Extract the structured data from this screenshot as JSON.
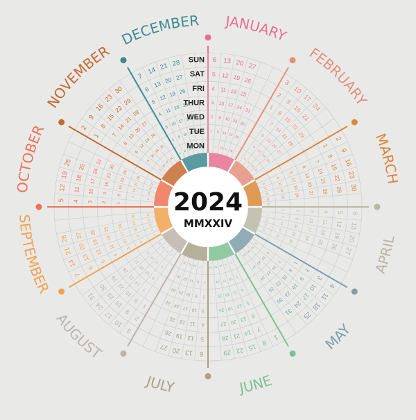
{
  "year": "2024",
  "roman_year": "MMXXIV",
  "weekday_labels": [
    "SUN",
    "SAT",
    "FRI",
    "THUR",
    "WED",
    "TUE",
    "MON"
  ],
  "months": [
    {
      "name": "JANUARY",
      "color": "#e86f8e",
      "first_weekday": 1,
      "days": 31
    },
    {
      "name": "FEBRUARY",
      "color": "#e4907a",
      "first_weekday": 4,
      "days": 29
    },
    {
      "name": "MARCH",
      "color": "#d9883a",
      "first_weekday": 5,
      "days": 31
    },
    {
      "name": "APRIL",
      "color": "#b9b8a3",
      "first_weekday": 1,
      "days": 30
    },
    {
      "name": "MAY",
      "color": "#7f9eaa",
      "first_weekday": 3,
      "days": 31
    },
    {
      "name": "JUNE",
      "color": "#7dc092",
      "first_weekday": 6,
      "days": 30
    },
    {
      "name": "JULY",
      "color": "#a9a187",
      "first_weekday": 1,
      "days": 31
    },
    {
      "name": "AUGUST",
      "color": "#bdb4aa",
      "first_weekday": 4,
      "days": 31
    },
    {
      "name": "SEPTEMBER",
      "color": "#f0a24f",
      "first_weekday": 0,
      "days": 30
    },
    {
      "name": "OCTOBER",
      "color": "#ee7255",
      "first_weekday": 2,
      "days": 31
    },
    {
      "name": "NOVEMBER",
      "color": "#c56a2e",
      "first_weekday": 5,
      "days": 30
    },
    {
      "name": "DECEMBER",
      "color": "#3d8a91",
      "first_weekday": 0,
      "days": 31
    }
  ]
}
